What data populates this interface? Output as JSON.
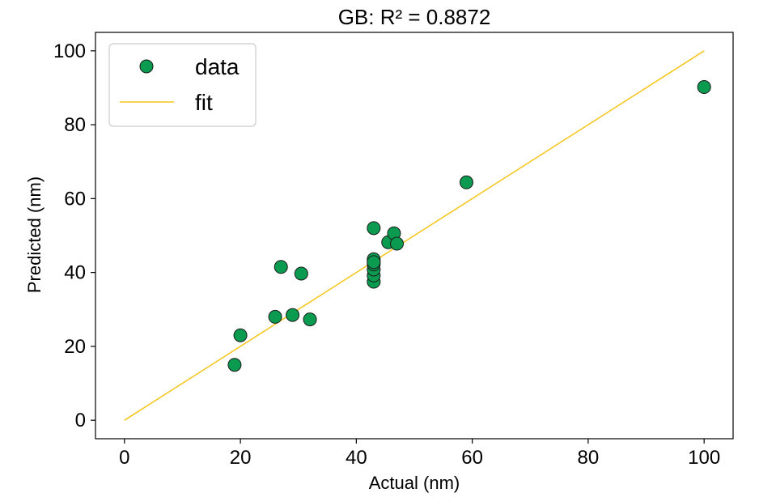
{
  "chart_data": {
    "type": "scatter",
    "title": "GB: R² = 0.8872",
    "xlabel": "Actual (nm)",
    "ylabel": "Predicted (nm)",
    "xlim": [
      -5,
      105
    ],
    "ylim": [
      -5,
      105
    ],
    "xticks": [
      0,
      20,
      40,
      60,
      80,
      100
    ],
    "yticks": [
      0,
      20,
      40,
      60,
      80,
      100
    ],
    "grid": false,
    "legend_position": "top-left",
    "series": [
      {
        "name": "data",
        "kind": "scatter",
        "color": "#0a9b50",
        "edgecolor": "#1a1a1a",
        "x": [
          19,
          20,
          26,
          27,
          29,
          30.5,
          32,
          43,
          43,
          43,
          43,
          43,
          43,
          43,
          43,
          45.5,
          46.5,
          47,
          59,
          100
        ],
        "y": [
          15,
          23,
          28,
          41.5,
          28.5,
          39.7,
          27.3,
          52,
          37.5,
          39.2,
          40.8,
          42.2,
          43,
          43.6,
          42.8,
          48.2,
          50.6,
          47.8,
          64.4,
          90.2
        ]
      },
      {
        "name": "fit",
        "kind": "line",
        "color": "#f5c518",
        "x": [
          0,
          100
        ],
        "y": [
          0,
          100
        ]
      }
    ]
  }
}
